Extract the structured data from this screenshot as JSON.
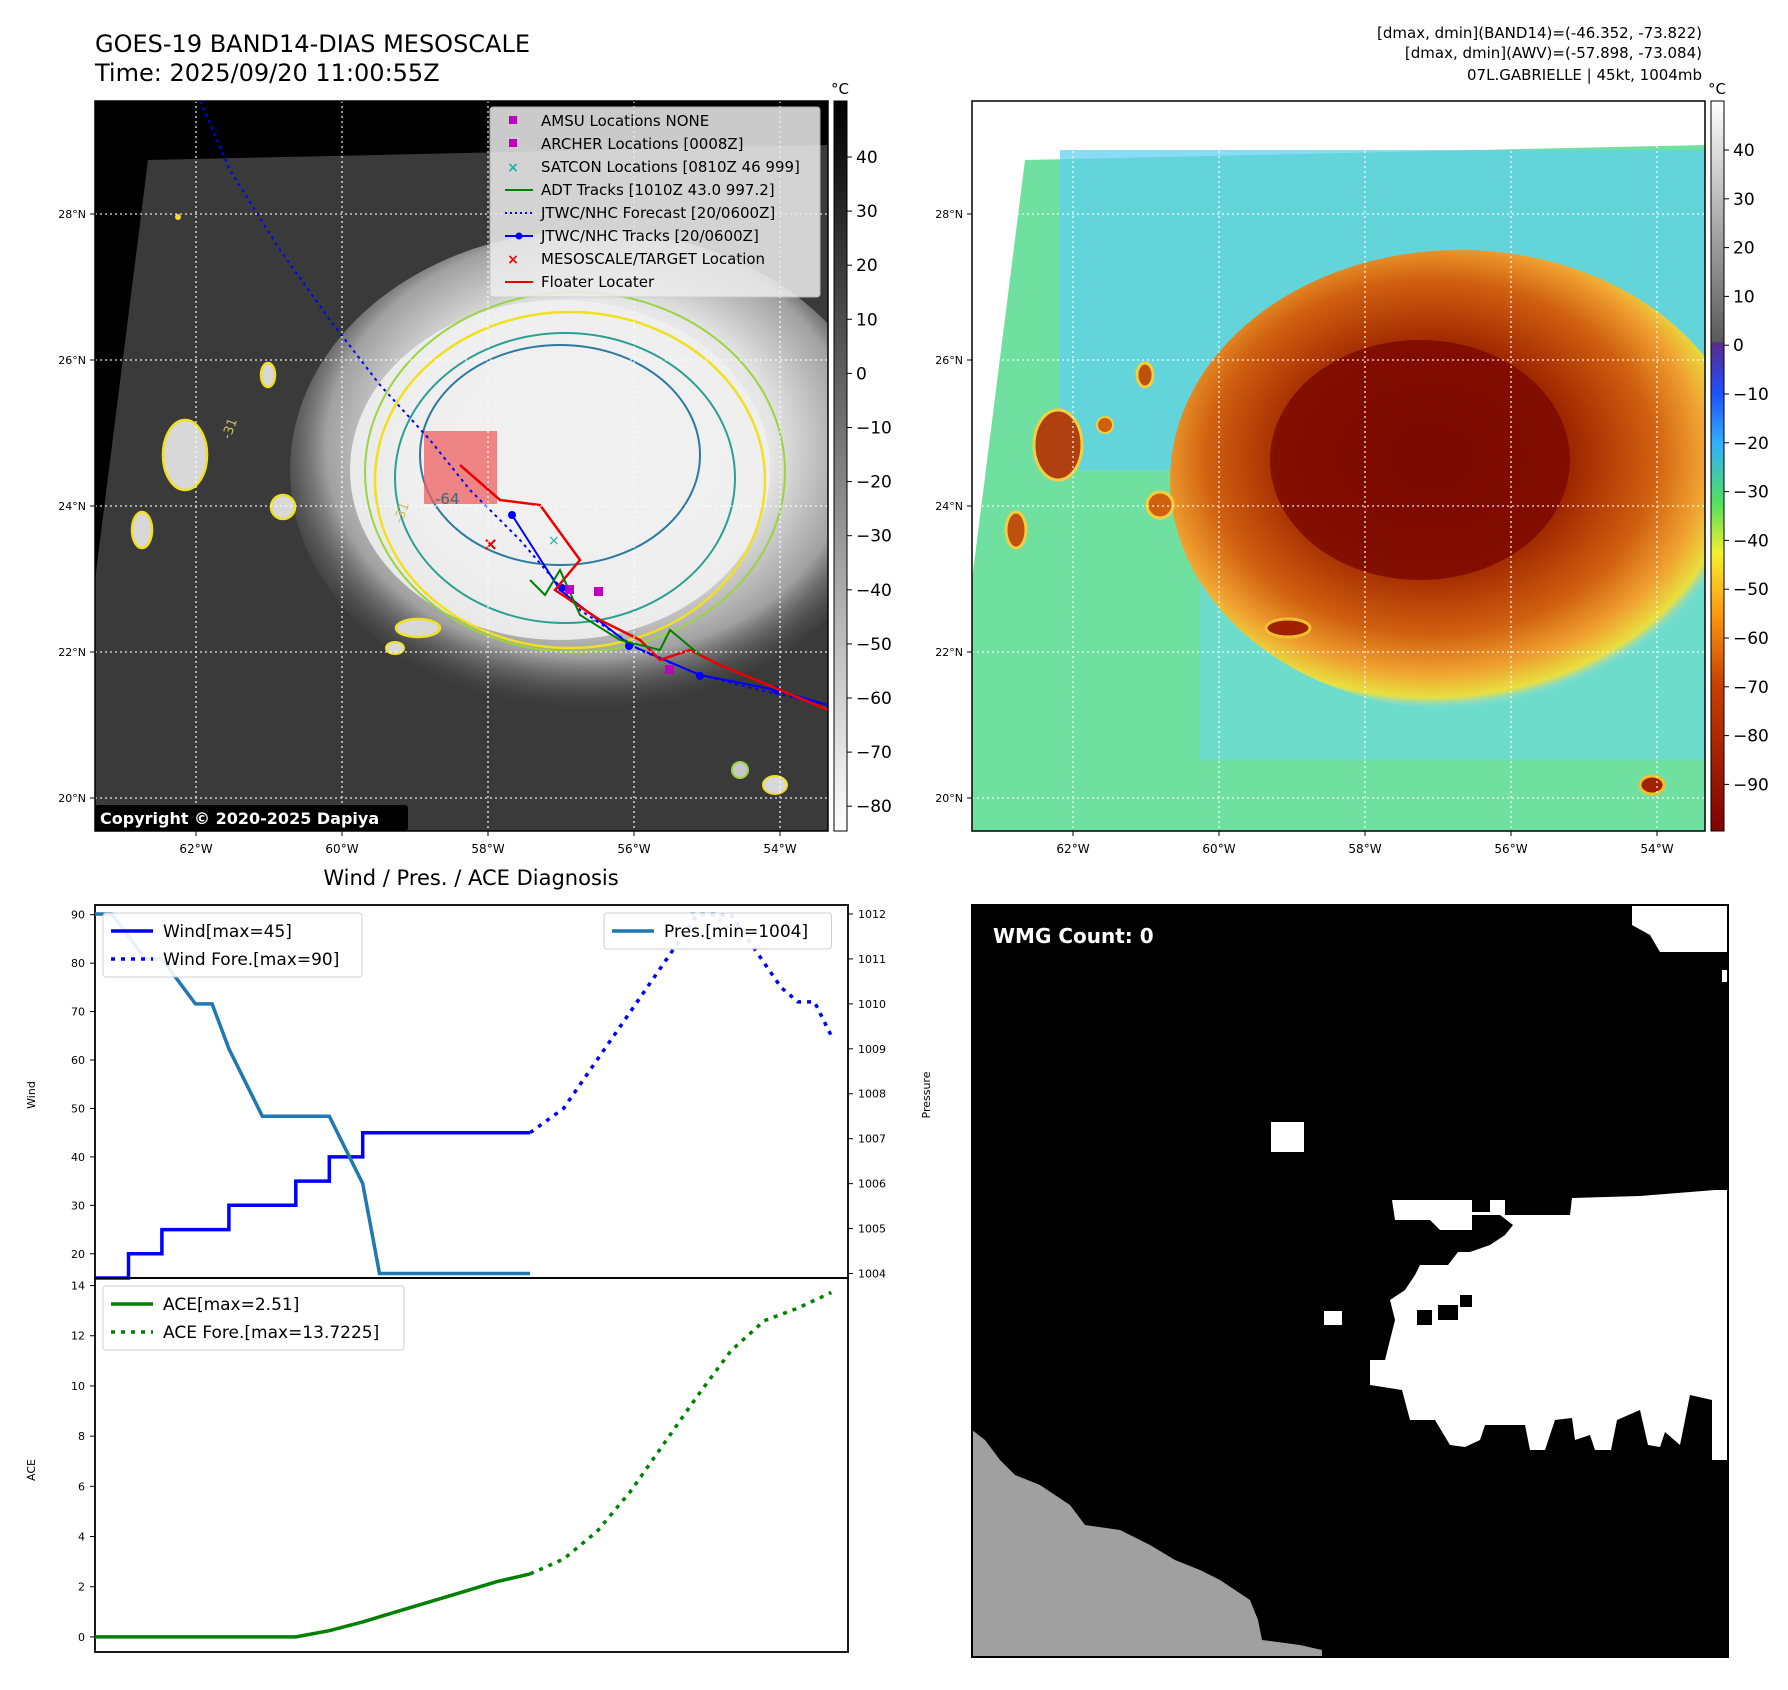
{
  "header": {
    "title_line1": "GOES-19 BAND14-DIAS MESOSCALE",
    "title_line2": "Time: 2025/09/20 11:00:55Z",
    "info_line1": "[dmax, dmin](BAND14)=(-46.352, -73.822)",
    "info_line2": "[dmax, dmin](AWV)=(-57.898, -73.084)",
    "info_line3": "07L.GABRIELLE | 45kt, 1004mb"
  },
  "map": {
    "lat_labels": [
      "28°N",
      "26°N",
      "24°N",
      "22°N",
      "20°N"
    ],
    "lon_labels": [
      "62°W",
      "60°W",
      "58°W",
      "56°W",
      "54°W"
    ],
    "contour_labels": [
      "-64",
      "-31",
      "-31"
    ],
    "copyright": "Copyright © 2020-2025 Dapiya",
    "legend": [
      {
        "label": "AMSU Locations NONE",
        "color": "#c000c0",
        "marker": "square"
      },
      {
        "label": "ARCHER Locations [0008Z]",
        "color": "#c000c0",
        "marker": "square"
      },
      {
        "label": "SATCON Locations [0810Z 46 999]",
        "color": "#1fb0b0",
        "marker": "x"
      },
      {
        "label": "ADT Tracks [1010Z 43.0 997.2]",
        "color": "#008000",
        "marker": "line"
      },
      {
        "label": "JTWC/NHC Forecast [20/0600Z]",
        "color": "#0000ff",
        "marker": "dotted"
      },
      {
        "label": "JTWC/NHC Tracks [20/0600Z]",
        "color": "#0000ff",
        "marker": "line-dot"
      },
      {
        "label": "MESOSCALE/TARGET Location",
        "color": "#ee0000",
        "marker": "x"
      },
      {
        "label": "Floater Locater",
        "color": "#ee0000",
        "marker": "line"
      }
    ],
    "colorbar_gray": {
      "unit": "°C",
      "ticks": [
        "40",
        "30",
        "20",
        "10",
        "0",
        "−10",
        "−20",
        "−30",
        "−40",
        "−50",
        "−60",
        "−70",
        "−80"
      ]
    },
    "colorbar_color": {
      "unit": "°C",
      "ticks": [
        "40",
        "30",
        "20",
        "10",
        "0",
        "−10",
        "−20",
        "−30",
        "−40",
        "−50",
        "−60",
        "−70",
        "−80",
        "−90"
      ]
    }
  },
  "diag": {
    "title": "Wind / Pres. / ACE Diagnosis",
    "wind_ylabel": "Wind",
    "pres_ylabel": "Pressure",
    "ace_ylabel": "ACE",
    "wmg": "WMG Count: 0"
  },
  "chart_data": [
    {
      "type": "line",
      "title": "Wind / Pres. / ACE Diagnosis",
      "ylabel": "Wind",
      "ylim": [
        15,
        92
      ],
      "yticks": [
        "20",
        "30",
        "40",
        "50",
        "60",
        "70",
        "80",
        "90"
      ],
      "y2label": "Pressure",
      "y2lim": [
        1003.9,
        1012.2
      ],
      "y2ticks": [
        "1004",
        "1005",
        "1006",
        "1007",
        "1008",
        "1009",
        "1010",
        "1011",
        "1012"
      ],
      "xlim": [
        0,
        22.5
      ],
      "series": [
        {
          "name": "Wind[max=45]",
          "color": "#0000ff",
          "style": "solid",
          "axis": "left",
          "x": [
            0,
            1,
            1,
            2,
            2,
            3,
            3,
            4,
            4,
            5,
            5,
            6,
            6,
            7,
            7,
            8,
            8,
            9,
            9,
            10,
            10,
            11,
            11,
            12,
            12,
            13
          ],
          "values": [
            15,
            15,
            20,
            20,
            25,
            25,
            25,
            25,
            30,
            30,
            30,
            30,
            35,
            35,
            40,
            40,
            45,
            45,
            45,
            45,
            45,
            45,
            45,
            45,
            45,
            45
          ]
        },
        {
          "name": "Wind Fore.[max=90]",
          "color": "#0000ff",
          "style": "dotted",
          "axis": "left",
          "x": [
            13,
            14,
            15,
            16,
            17,
            18,
            19,
            19.5,
            20,
            20.5,
            21,
            21.5,
            22
          ],
          "values": [
            45,
            50,
            60,
            70,
            80,
            90,
            90,
            85,
            80,
            75,
            72,
            72,
            65
          ]
        },
        {
          "name": "Pres.[min=1004]",
          "color": "#1f77b4",
          "style": "solid",
          "axis": "right",
          "x": [
            0,
            0.5,
            1,
            1.5,
            2,
            2.5,
            3,
            3.5,
            4,
            5,
            5.5,
            7,
            8,
            8.5,
            13
          ],
          "values": [
            1012,
            1012,
            1011.5,
            1011,
            1011,
            1010.5,
            1010,
            1010,
            1009,
            1007.5,
            1007.5,
            1007.5,
            1006,
            1004,
            1004
          ]
        },
        {
          "name": "",
          "color": "#1f77b4",
          "style": "dotted",
          "axis": "right",
          "x": [
            17.8,
            18.5,
            19,
            19.5,
            20
          ],
          "values": [
            1012,
            1012,
            1011.6,
            1011.6,
            1011.6
          ]
        }
      ]
    },
    {
      "type": "line",
      "ylabel": "ACE",
      "ylim": [
        -0.6,
        14.3
      ],
      "yticks": [
        "0",
        "2",
        "4",
        "6",
        "8",
        "10",
        "12",
        "14"
      ],
      "xlim": [
        0,
        22.5
      ],
      "series": [
        {
          "name": "ACE[max=2.51]",
          "color": "#008000",
          "style": "solid",
          "x": [
            0,
            2,
            4,
            5,
            6,
            7,
            8,
            9,
            10,
            11,
            12,
            13
          ],
          "values": [
            0,
            0,
            0,
            0,
            0,
            0.25,
            0.6,
            1.0,
            1.4,
            1.8,
            2.2,
            2.51
          ]
        },
        {
          "name": "ACE Fore.[max=13.7225]",
          "color": "#008000",
          "style": "dotted",
          "x": [
            13,
            14,
            15,
            16,
            17,
            18,
            19,
            20,
            21,
            22
          ],
          "values": [
            2.51,
            3.1,
            4.2,
            5.8,
            7.7,
            9.6,
            11.4,
            12.6,
            13.1,
            13.7225
          ]
        }
      ]
    }
  ]
}
